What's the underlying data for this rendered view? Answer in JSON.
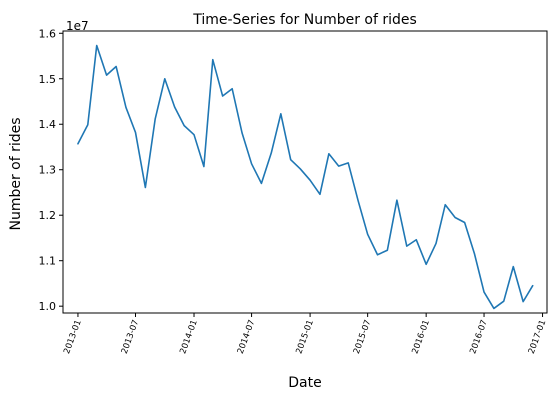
{
  "chart_data": {
    "type": "line",
    "title": "Time-Series for Number of rides",
    "xlabel": "Date",
    "ylabel": "Number of rides",
    "y_offset_label": "1e7",
    "ylim": [
      9.85,
      16.05
    ],
    "xlim": [
      "2012-11-15",
      "2017-01-15"
    ],
    "grid": false,
    "line_color": "#1f77b4",
    "x_ticks": [
      {
        "date": "2013-01-01",
        "label": "2013-01"
      },
      {
        "date": "2013-07-01",
        "label": "2013-07"
      },
      {
        "date": "2014-01-01",
        "label": "2014-01"
      },
      {
        "date": "2014-07-01",
        "label": "2014-07"
      },
      {
        "date": "2015-01-01",
        "label": "2015-01"
      },
      {
        "date": "2015-07-01",
        "label": "2015-07"
      },
      {
        "date": "2016-01-01",
        "label": "2016-01"
      },
      {
        "date": "2016-07-01",
        "label": "2016-07"
      },
      {
        "date": "2017-01-01",
        "label": "2017-01"
      }
    ],
    "y_ticks": [
      {
        "value": 10.0,
        "label": "1.0"
      },
      {
        "value": 11.0,
        "label": "1.1"
      },
      {
        "value": 12.0,
        "label": "1.2"
      },
      {
        "value": 13.0,
        "label": "1.3"
      },
      {
        "value": 14.0,
        "label": "1.4"
      },
      {
        "value": 15.0,
        "label": "1.5"
      },
      {
        "value": 16.0,
        "label": "1.6"
      }
    ],
    "series": [
      {
        "x": [
          "2013-01-01",
          "2013-02-01",
          "2013-03-01",
          "2013-04-01",
          "2013-05-01",
          "2013-06-01",
          "2013-07-01",
          "2013-08-01",
          "2013-09-01",
          "2013-10-01",
          "2013-11-01",
          "2013-12-01",
          "2014-01-01",
          "2014-02-01",
          "2014-03-01",
          "2014-04-01",
          "2014-05-01",
          "2014-06-01",
          "2014-07-01",
          "2014-08-01",
          "2014-09-01",
          "2014-10-01",
          "2014-11-01",
          "2014-12-01",
          "2015-01-01",
          "2015-02-01",
          "2015-03-01",
          "2015-04-01",
          "2015-05-01",
          "2015-06-01",
          "2015-07-01",
          "2015-08-01",
          "2015-09-01",
          "2015-10-01",
          "2015-11-01",
          "2015-12-01",
          "2016-01-01",
          "2016-02-01",
          "2016-03-01",
          "2016-04-01",
          "2016-05-01",
          "2016-06-01",
          "2016-07-01",
          "2016-08-01",
          "2016-09-01",
          "2016-10-01",
          "2016-11-01",
          "2016-12-01"
        ],
        "values": [
          13.57,
          13.99,
          15.73,
          15.08,
          15.27,
          14.37,
          13.82,
          12.61,
          14.12,
          15.0,
          14.38,
          13.97,
          13.77,
          13.07,
          15.42,
          14.62,
          14.78,
          13.81,
          13.13,
          12.7,
          13.37,
          14.23,
          13.22,
          13.02,
          12.77,
          12.46,
          13.35,
          13.08,
          13.15,
          12.32,
          11.58,
          11.13,
          11.23,
          12.33,
          11.32,
          11.46,
          10.92,
          11.38,
          12.23,
          11.95,
          11.84,
          11.15,
          10.31,
          9.95,
          10.11,
          10.87,
          10.1,
          10.45
        ]
      }
    ]
  }
}
